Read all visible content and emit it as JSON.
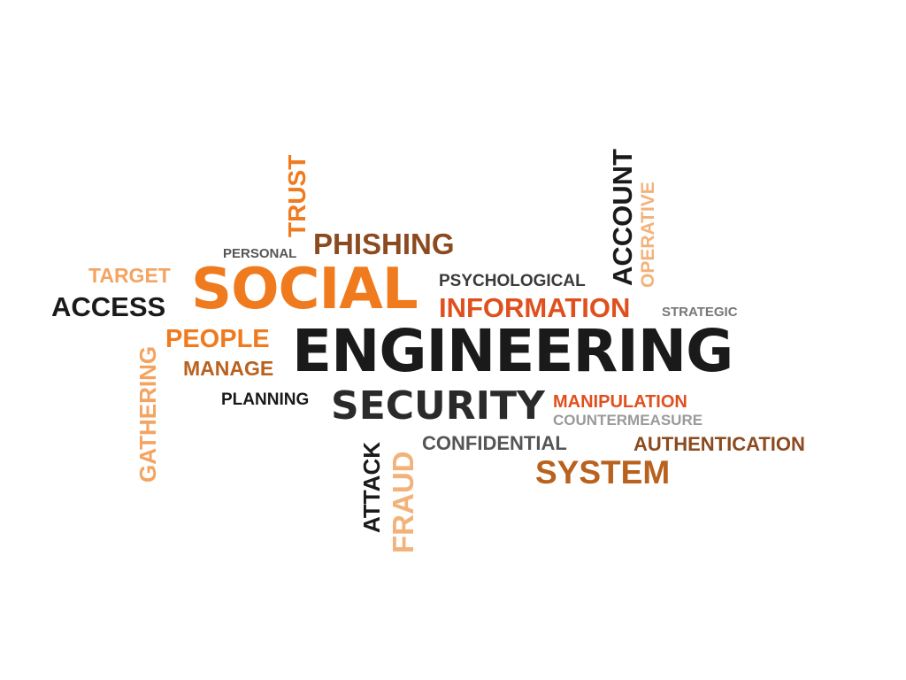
{
  "word_cloud": {
    "palette": {
      "black": "#1a1a1a",
      "dark_gray": "#3a3a3a",
      "gray": "#555555",
      "light_gray": "#9a9a9a",
      "orange": "#f07a1e",
      "light_orange": "#f4a460",
      "peach": "#f2b27a",
      "red_orange": "#e0501e",
      "brown": "#8b4a1f",
      "rust": "#b9611e"
    },
    "words": {
      "engineering": "ENGINEERING",
      "social": "SOCIAL",
      "security": "SECURITY",
      "phishing": "PHISHING",
      "information": "INFORMATION",
      "system": "SYSTEM",
      "access": "ACCESS",
      "people": "PEOPLE",
      "target": "TARGET",
      "manage": "MANAGE",
      "personal": "PERSONAL",
      "psychological": "PSYCHOLOGICAL",
      "strategic": "STRATEGIC",
      "planning": "PLANNING",
      "manipulation": "MANIPULATION",
      "countermeasure": "COUNTERMEASURE",
      "confidential": "CONFIDENTIAL",
      "authentication": "AUTHENTICATION",
      "trust": "TRUST",
      "account": "ACCOUNT",
      "operative": "OPERATIVE",
      "gathering": "GATHERING",
      "attack": "ATTACK",
      "fraud": "FRAUD"
    }
  }
}
